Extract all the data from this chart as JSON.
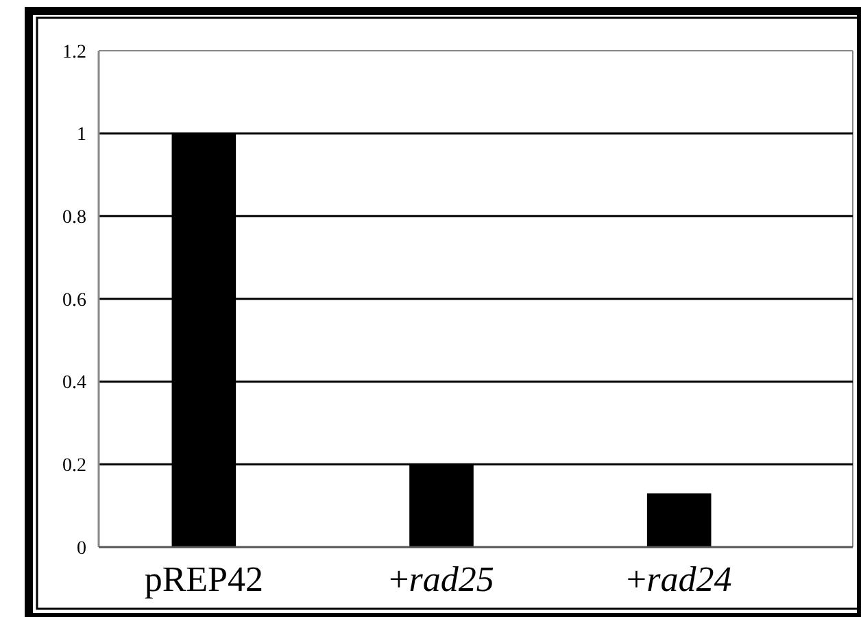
{
  "chart_data": {
    "type": "bar",
    "categories": [
      "pREP42",
      "+rad25",
      "+rad24"
    ],
    "values": [
      1,
      0.2,
      0.13
    ],
    "color": "#000000",
    "ylim": [
      0,
      1.2
    ],
    "yticks": [
      0,
      0.2,
      0.4,
      0.6,
      0.8,
      1,
      1.2
    ],
    "grid": "y"
  }
}
